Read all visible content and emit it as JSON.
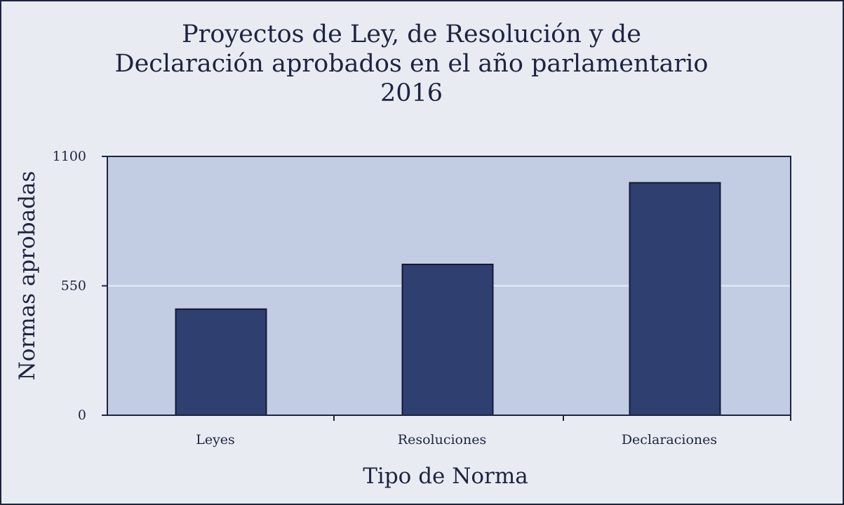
{
  "chart_data": {
    "type": "bar",
    "title_lines": [
      "Proyectos de Ley, de Resolución y de",
      "Declaración aprobados en el año parlamentario",
      "2016"
    ],
    "xlabel": "Tipo de Norma",
    "ylabel": "Normas aprobadas",
    "categories": [
      "Leyes",
      "Resoluciones",
      "Declaraciones"
    ],
    "values": [
      451,
      641,
      988
    ],
    "ylim": [
      0,
      1100
    ],
    "yticks": [
      0,
      550,
      1100
    ],
    "ytick_labels": [
      "0",
      "550",
      "1100"
    ],
    "grid": true,
    "legend": "none",
    "colors": {
      "bar": "#2e3f70",
      "bar_stroke": "#151a33",
      "plot_bg": "#c2cde4",
      "page_bg": "#e8ecf2",
      "axis": "#1e2440",
      "gridline": "#e6ecf6"
    }
  }
}
